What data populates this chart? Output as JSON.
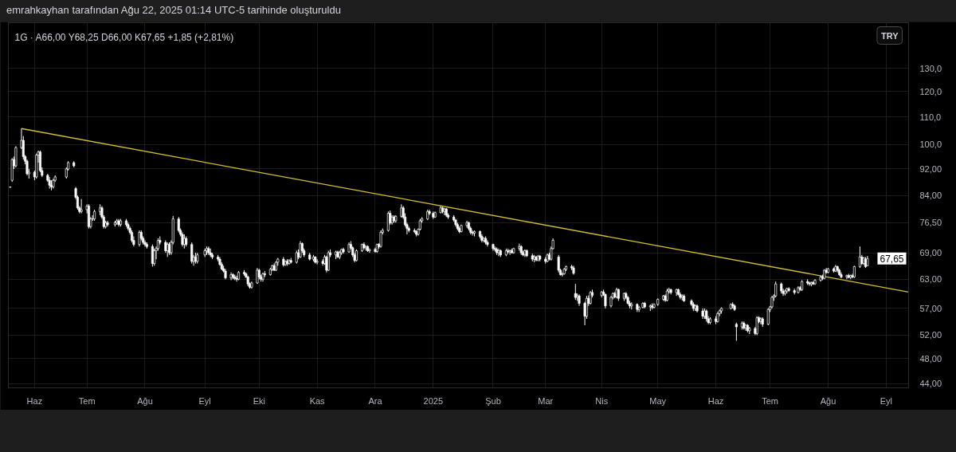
{
  "chart_data": {
    "type": "candlestick",
    "title": "emrahkayhan tarafından Ağu 22, 2025 01:14 UTC-5 tarihinde oluşturuldu",
    "subtitle": "1G · A66,00 Y68,25 D66,00 K67,65 +1,85 (+2,81%)",
    "color": "#ffffff",
    "x": [
      "2024-05-21",
      "2024-05-22",
      "2024-05-23",
      "2024-05-24",
      "2024-05-27",
      "2024-05-28",
      "2024-05-29",
      "2024-05-30",
      "2024-05-31",
      "2024-06-03",
      "2024-06-04",
      "2024-06-05",
      "2024-06-06",
      "2024-06-07",
      "2024-06-10",
      "2024-06-11",
      "2024-06-12",
      "2024-06-13",
      "2024-06-14",
      "2024-06-20",
      "2024-06-21",
      "2024-06-24",
      "2024-06-25",
      "2024-06-26",
      "2024-06-27",
      "2024-06-28",
      "2024-07-01",
      "2024-07-02",
      "2024-07-03",
      "2024-07-04",
      "2024-07-05",
      "2024-07-08",
      "2024-07-09",
      "2024-07-10",
      "2024-07-11",
      "2024-07-12",
      "2024-07-16",
      "2024-07-17",
      "2024-07-18",
      "2024-07-19",
      "2024-07-22",
      "2024-07-23",
      "2024-07-24",
      "2024-07-25",
      "2024-07-26",
      "2024-07-29",
      "2024-07-30",
      "2024-07-31",
      "2024-08-01",
      "2024-08-02",
      "2024-08-05",
      "2024-08-06",
      "2024-08-07",
      "2024-08-08",
      "2024-08-09",
      "2024-08-12",
      "2024-08-13",
      "2024-08-14",
      "2024-08-15",
      "2024-08-16",
      "2024-08-19",
      "2024-08-20",
      "2024-08-21",
      "2024-08-22",
      "2024-08-23",
      "2024-08-26",
      "2024-08-27",
      "2024-08-28",
      "2024-08-29",
      "2024-09-02",
      "2024-09-03",
      "2024-09-04",
      "2024-09-05",
      "2024-09-06",
      "2024-09-09",
      "2024-09-10",
      "2024-09-11",
      "2024-09-12",
      "2024-09-13",
      "2024-09-16",
      "2024-09-17",
      "2024-09-18",
      "2024-09-19",
      "2024-09-20",
      "2024-09-23",
      "2024-09-24",
      "2024-09-25",
      "2024-09-26",
      "2024-09-27",
      "2024-09-30",
      "2024-10-01",
      "2024-10-02",
      "2024-10-03",
      "2024-10-04",
      "2024-10-07",
      "2024-10-08",
      "2024-10-09",
      "2024-10-10",
      "2024-10-11",
      "2024-10-14",
      "2024-10-15",
      "2024-10-16",
      "2024-10-17",
      "2024-10-18",
      "2024-10-21",
      "2024-10-22",
      "2024-10-23",
      "2024-10-24",
      "2024-10-25",
      "2024-10-28",
      "2024-10-30",
      "2024-10-31",
      "2024-11-01",
      "2024-11-04",
      "2024-11-05",
      "2024-11-06",
      "2024-11-07",
      "2024-11-08",
      "2024-11-11",
      "2024-11-12",
      "2024-11-13",
      "2024-11-14",
      "2024-11-15",
      "2024-11-18",
      "2024-11-19",
      "2024-11-20",
      "2024-11-21",
      "2024-11-22",
      "2024-11-25",
      "2024-11-26",
      "2024-11-27",
      "2024-11-28",
      "2024-11-29",
      "2024-12-02",
      "2024-12-03",
      "2024-12-04",
      "2024-12-05",
      "2024-12-06",
      "2024-12-09",
      "2024-12-10",
      "2024-12-11",
      "2024-12-12",
      "2024-12-13",
      "2024-12-16",
      "2024-12-17",
      "2024-12-18",
      "2024-12-19",
      "2024-12-20",
      "2024-12-23",
      "2024-12-24",
      "2024-12-25",
      "2024-12-26",
      "2024-12-27",
      "2024-12-30",
      "2024-12-31",
      "2025-01-02",
      "2025-01-03",
      "2025-01-06",
      "2025-01-07",
      "2025-01-08",
      "2025-01-09",
      "2025-01-10",
      "2025-01-13",
      "2025-01-14",
      "2025-01-15",
      "2025-01-16",
      "2025-01-17",
      "2025-01-20",
      "2025-01-21",
      "2025-01-22",
      "2025-01-23",
      "2025-01-24",
      "2025-01-27",
      "2025-01-28",
      "2025-01-29",
      "2025-01-30",
      "2025-01-31",
      "2025-02-03",
      "2025-02-04",
      "2025-02-05",
      "2025-02-06",
      "2025-02-07",
      "2025-02-10",
      "2025-02-11",
      "2025-02-12",
      "2025-02-13",
      "2025-02-14",
      "2025-02-17",
      "2025-02-18",
      "2025-02-19",
      "2025-02-20",
      "2025-02-21",
      "2025-02-24",
      "2025-02-25",
      "2025-02-26",
      "2025-02-27",
      "2025-02-28",
      "2025-03-03",
      "2025-03-04",
      "2025-03-05",
      "2025-03-06",
      "2025-03-07",
      "2025-03-10",
      "2025-03-11",
      "2025-03-12",
      "2025-03-13",
      "2025-03-14",
      "2025-03-17",
      "2025-03-18",
      "2025-03-19",
      "2025-03-20",
      "2025-03-21",
      "2025-03-24",
      "2025-03-25",
      "2025-03-26",
      "2025-03-27",
      "2025-03-28",
      "2025-04-02",
      "2025-04-03",
      "2025-04-04",
      "2025-04-07",
      "2025-04-08",
      "2025-04-09",
      "2025-04-10",
      "2025-04-11",
      "2025-04-14",
      "2025-04-15",
      "2025-04-16",
      "2025-04-17",
      "2025-04-18",
      "2025-04-21",
      "2025-04-22",
      "2025-04-24",
      "2025-04-25",
      "2025-04-28",
      "2025-04-29",
      "2025-04-30",
      "2025-05-02",
      "2025-05-05",
      "2025-05-06",
      "2025-05-07",
      "2025-05-08",
      "2025-05-09",
      "2025-05-12",
      "2025-05-13",
      "2025-05-14",
      "2025-05-15",
      "2025-05-16",
      "2025-05-20",
      "2025-05-21",
      "2025-05-22",
      "2025-05-23",
      "2025-05-26",
      "2025-05-27",
      "2025-05-28",
      "2025-05-29",
      "2025-05-30",
      "2025-06-02",
      "2025-06-03",
      "2025-06-04",
      "2025-06-05",
      "2025-06-10",
      "2025-06-11",
      "2025-06-12",
      "2025-06-13",
      "2025-06-16",
      "2025-06-17",
      "2025-06-18",
      "2025-06-19",
      "2025-06-20",
      "2025-06-23",
      "2025-06-24",
      "2025-06-25",
      "2025-06-26",
      "2025-06-27",
      "2025-06-30",
      "2025-07-01",
      "2025-07-02",
      "2025-07-03",
      "2025-07-04",
      "2025-07-07",
      "2025-07-08",
      "2025-07-09",
      "2025-07-10",
      "2025-07-11",
      "2025-07-14",
      "2025-07-16",
      "2025-07-17",
      "2025-07-18",
      "2025-07-21",
      "2025-07-22",
      "2025-07-23",
      "2025-07-24",
      "2025-07-25",
      "2025-07-28",
      "2025-07-29",
      "2025-07-30",
      "2025-07-31",
      "2025-08-01",
      "2025-08-04",
      "2025-08-05",
      "2025-08-06",
      "2025-08-07",
      "2025-08-08",
      "2025-08-11",
      "2025-08-12",
      "2025-08-13",
      "2025-08-14",
      "2025-08-15",
      "2025-08-18",
      "2025-08-19",
      "2025-08-20",
      "2025-08-21",
      "2025-08-22"
    ],
    "ohlc": [
      [
        86.4,
        86.6,
        86.3,
        86.5
      ],
      [
        88.5,
        95.5,
        88,
        95
      ],
      [
        95,
        96,
        92,
        93
      ],
      [
        93,
        99.5,
        92.5,
        99
      ],
      [
        99,
        105.7,
        98.5,
        101.5
      ],
      [
        101.5,
        103,
        95,
        96
      ],
      [
        96,
        96.5,
        93.5,
        94.5
      ],
      [
        94.5,
        95,
        90,
        90.5
      ],
      [
        90.5,
        92,
        89,
        91
      ],
      [
        91,
        91.5,
        88.5,
        89.5
      ],
      [
        89.5,
        97,
        89,
        96.5
      ],
      [
        96.5,
        98,
        94,
        97.5
      ],
      [
        97.5,
        98,
        91,
        91.5
      ],
      [
        91.5,
        92.5,
        89.5,
        90
      ],
      [
        90,
        90.5,
        88,
        88.5
      ],
      [
        88.5,
        89.5,
        86,
        87
      ],
      [
        87,
        88.5,
        85.5,
        86.5
      ],
      [
        86.5,
        89,
        86,
        88.5
      ],
      [
        88.5,
        90,
        88,
        89.5
      ],
      [
        89.5,
        92.5,
        89,
        92
      ],
      [
        92,
        94.5,
        91.5,
        94
      ],
      [
        94,
        94.5,
        92.5,
        93
      ],
      [
        86,
        86.5,
        83,
        83.5
      ],
      [
        83.5,
        84,
        80,
        80.5
      ],
      [
        80.5,
        81,
        79,
        79.5
      ],
      [
        79.5,
        83,
        79,
        80
      ],
      [
        80,
        81.5,
        79,
        81
      ],
      [
        81,
        81.5,
        75,
        75.5
      ],
      [
        75.5,
        78,
        75,
        77.5
      ],
      [
        77.5,
        78.5,
        77,
        77.5
      ],
      [
        77.5,
        80,
        77,
        79.5
      ],
      [
        79.5,
        81.5,
        78.5,
        80.5
      ],
      [
        80.5,
        81,
        77.5,
        78
      ],
      [
        78,
        78.5,
        75,
        75.5
      ],
      [
        75.5,
        77,
        75,
        76.5
      ],
      [
        76.5,
        77,
        75.5,
        76
      ],
      [
        76,
        77,
        75.5,
        76.5
      ],
      [
        76.5,
        77.5,
        76,
        77
      ],
      [
        77,
        77.5,
        75.5,
        76
      ],
      [
        76,
        77.5,
        75.5,
        77
      ],
      [
        77,
        77.5,
        75.5,
        76
      ],
      [
        76,
        76.5,
        74.5,
        75
      ],
      [
        75,
        75.5,
        73.5,
        74
      ],
      [
        74,
        74.5,
        71.5,
        72
      ],
      [
        72,
        73,
        70.5,
        71
      ],
      [
        71,
        74.5,
        70.5,
        74
      ],
      [
        74,
        74.5,
        72,
        72.5
      ],
      [
        72.5,
        73,
        71,
        71.5
      ],
      [
        71.5,
        72,
        70.5,
        71
      ],
      [
        71,
        71.5,
        70,
        70.5
      ],
      [
        70.5,
        71,
        65.8,
        66.5
      ],
      [
        66.5,
        70,
        66,
        69.5
      ],
      [
        69.5,
        70.5,
        67.5,
        70
      ],
      [
        70,
        72.5,
        69.5,
        72
      ],
      [
        72,
        73,
        71,
        71.5
      ],
      [
        71.5,
        72,
        69,
        69.5
      ],
      [
        69.5,
        71.5,
        68,
        71
      ],
      [
        71,
        71.5,
        68.5,
        69
      ],
      [
        69,
        72,
        68.5,
        71.5
      ],
      [
        71.5,
        78.3,
        71,
        77.5
      ],
      [
        77.5,
        78,
        74,
        74.5
      ],
      [
        74.5,
        75,
        73,
        73.5
      ],
      [
        73.5,
        74,
        70.5,
        71
      ],
      [
        71,
        73.5,
        70,
        72.5
      ],
      [
        72.5,
        73,
        70.5,
        71
      ],
      [
        71,
        71.5,
        66.5,
        67
      ],
      [
        67,
        68.5,
        66,
        68
      ],
      [
        68,
        69,
        66.5,
        67
      ],
      [
        67,
        69,
        66.5,
        68.5
      ],
      [
        68.5,
        70,
        68,
        69.5
      ],
      [
        69.5,
        70.5,
        68.5,
        70
      ],
      [
        70,
        70.5,
        68.5,
        69
      ],
      [
        69,
        70,
        68,
        68.5
      ],
      [
        68.5,
        69,
        67.5,
        68
      ],
      [
        68,
        68.5,
        67,
        67.5
      ],
      [
        67.5,
        68,
        66,
        66.3
      ],
      [
        66.3,
        66.8,
        65,
        65.3
      ],
      [
        65.3,
        66,
        64.5,
        64.8
      ],
      [
        64.8,
        65.3,
        63,
        63.3
      ],
      [
        63.3,
        64.5,
        62.8,
        64
      ],
      [
        64,
        64.3,
        63,
        63.5
      ],
      [
        63.5,
        64,
        62.8,
        63.2
      ],
      [
        63.2,
        63.8,
        62.5,
        63
      ],
      [
        63,
        64.8,
        62.8,
        64.5
      ],
      [
        64.5,
        65,
        63.8,
        64.2
      ],
      [
        64.2,
        64.5,
        63.3,
        63.5
      ],
      [
        63.5,
        63.8,
        61.5,
        62
      ],
      [
        62,
        62.3,
        61,
        61.3
      ],
      [
        61.3,
        62.5,
        61,
        62.2
      ],
      [
        62.2,
        65.5,
        62,
        65
      ],
      [
        65,
        65.3,
        63,
        63.5
      ],
      [
        63.5,
        64,
        62.5,
        63
      ],
      [
        63,
        64.5,
        62.5,
        64.2
      ],
      [
        64.2,
        64.8,
        63.5,
        64
      ],
      [
        64,
        65.5,
        63.8,
        65.2
      ],
      [
        65.2,
        66.2,
        64.8,
        66
      ],
      [
        66,
        66.5,
        64.8,
        65
      ],
      [
        65,
        67,
        64.8,
        66.8
      ],
      [
        66.8,
        67.8,
        66,
        67.5
      ],
      [
        67.5,
        68,
        65.8,
        66.2
      ],
      [
        66.2,
        67.2,
        66,
        67
      ],
      [
        67,
        67.5,
        66,
        66.5
      ],
      [
        66.5,
        67.5,
        66.2,
        67.2
      ],
      [
        67.2,
        67.8,
        66.5,
        66.8
      ],
      [
        66.8,
        69.5,
        66.5,
        69
      ],
      [
        69,
        69.8,
        67.5,
        68
      ],
      [
        68,
        71.8,
        67.8,
        71.2
      ],
      [
        71.2,
        71.5,
        69,
        69.5
      ],
      [
        69.5,
        70,
        68,
        68.5
      ],
      [
        68.5,
        69,
        67.2,
        67.5
      ],
      [
        67.5,
        68.5,
        67,
        68
      ],
      [
        68,
        68.2,
        66.5,
        66.8
      ],
      [
        66.8,
        67.5,
        66.3,
        67
      ],
      [
        67,
        67.5,
        66,
        66.5
      ],
      [
        66.5,
        68.5,
        66.2,
        68
      ],
      [
        68,
        68.3,
        64.5,
        65
      ],
      [
        65,
        69.5,
        64.8,
        69
      ],
      [
        69,
        69.8,
        68,
        68.5
      ],
      [
        68.5,
        69.5,
        67.5,
        69.2
      ],
      [
        69.2,
        69.5,
        67.8,
        68
      ],
      [
        68,
        69.5,
        67.5,
        69
      ],
      [
        69,
        70,
        68.5,
        69.8
      ],
      [
        69.8,
        70.2,
        68.8,
        69.2
      ],
      [
        69.2,
        71.5,
        69,
        71
      ],
      [
        71,
        71.8,
        69.8,
        70.2
      ],
      [
        70.2,
        70.5,
        68,
        68.5
      ],
      [
        68.5,
        69,
        66.8,
        67.2
      ],
      [
        67.2,
        69.8,
        67,
        69.5
      ],
      [
        69.5,
        71.2,
        69.2,
        71
      ],
      [
        71,
        71.5,
        69.8,
        70.2
      ],
      [
        70.2,
        70.8,
        69.5,
        70.5
      ],
      [
        70.5,
        70.8,
        69.2,
        69.5
      ],
      [
        69.5,
        70,
        69,
        69.8
      ],
      [
        69.8,
        70.2,
        69,
        69.3
      ],
      [
        69.3,
        71.2,
        69,
        71
      ],
      [
        71,
        71.3,
        70,
        70.5
      ],
      [
        70.5,
        74.5,
        70.2,
        74
      ],
      [
        74,
        75,
        73.5,
        74.5
      ],
      [
        74.5,
        79.5,
        74.2,
        79
      ],
      [
        79,
        79.8,
        76,
        76.5
      ],
      [
        76.5,
        78.5,
        76,
        78
      ],
      [
        78,
        78.5,
        76.5,
        77
      ],
      [
        77,
        78.5,
        76.5,
        78.2
      ],
      [
        78.2,
        81.5,
        77.8,
        80.5
      ],
      [
        80.5,
        81,
        77.5,
        78
      ],
      [
        78,
        79,
        75.5,
        76
      ],
      [
        76,
        76.5,
        73.5,
        75
      ],
      [
        75,
        75.5,
        74,
        74.5
      ],
      [
        74.5,
        75,
        73.8,
        74.2
      ],
      [
        74.2,
        74.5,
        73,
        73.5
      ],
      [
        73.5,
        75,
        73.2,
        74.8
      ],
      [
        74.8,
        77.5,
        74.5,
        77
      ],
      [
        77,
        78,
        76.5,
        77.5
      ],
      [
        77.5,
        80,
        77.2,
        79.5
      ],
      [
        79.5,
        80,
        78.5,
        79
      ],
      [
        79,
        79.5,
        77.5,
        78
      ],
      [
        78,
        79.5,
        77.8,
        79.2
      ],
      [
        79.2,
        81,
        79,
        80.5
      ],
      [
        80.5,
        80.8,
        79,
        79.5
      ],
      [
        79.5,
        80.5,
        78.5,
        80.2
      ],
      [
        80.2,
        80.5,
        78,
        78.5
      ],
      [
        78.5,
        79,
        77.5,
        78
      ],
      [
        78,
        78.5,
        76.8,
        77.2
      ],
      [
        77.2,
        77.5,
        75.5,
        76
      ],
      [
        76,
        76.5,
        74.5,
        75
      ],
      [
        75,
        75.5,
        73.8,
        74.2
      ],
      [
        74.2,
        76,
        74,
        75.8
      ],
      [
        75.8,
        77,
        75.2,
        76.5
      ],
      [
        76.5,
        76.8,
        74.5,
        75
      ],
      [
        75,
        75.5,
        73.5,
        74
      ],
      [
        74,
        74.5,
        73.2,
        73.8
      ],
      [
        73.8,
        74.5,
        73,
        74.2
      ],
      [
        74.2,
        74.5,
        72.5,
        73
      ],
      [
        73,
        73.5,
        71.5,
        72
      ],
      [
        72,
        72.8,
        71.5,
        72.5
      ],
      [
        72.5,
        73,
        71,
        71.5
      ],
      [
        71.5,
        72,
        70.5,
        71
      ],
      [
        71,
        71.2,
        69.5,
        70
      ],
      [
        70,
        70.5,
        69.3,
        69.8
      ],
      [
        69.8,
        70.3,
        68.5,
        69
      ],
      [
        69,
        70,
        68.2,
        69.5
      ],
      [
        69.5,
        69.8,
        68,
        68.5
      ],
      [
        68.5,
        70,
        68.2,
        69.5
      ],
      [
        69.5,
        70,
        68.8,
        69.2
      ],
      [
        69.2,
        69.8,
        68.5,
        69.5
      ],
      [
        69.5,
        70,
        68.8,
        69
      ],
      [
        69,
        70.2,
        68.8,
        70
      ],
      [
        70,
        71.2,
        69.5,
        70.5
      ],
      [
        70.5,
        70.8,
        68.5,
        69
      ],
      [
        69,
        69.5,
        68.2,
        68.5
      ],
      [
        68.5,
        69.8,
        68,
        69.5
      ],
      [
        69.5,
        69.8,
        68,
        68.3
      ],
      [
        68.3,
        68.8,
        67,
        67.5
      ],
      [
        67.5,
        68.5,
        66.8,
        68
      ],
      [
        68,
        68.3,
        67,
        67.3
      ],
      [
        67.3,
        68.5,
        67,
        68.2
      ],
      [
        68.2,
        68.5,
        67,
        67.5
      ],
      [
        67.5,
        68,
        66.5,
        67
      ],
      [
        67,
        68.8,
        66.8,
        68.5
      ],
      [
        68.5,
        69,
        67.2,
        67.5
      ],
      [
        67.5,
        70.5,
        67.2,
        70
      ],
      [
        70,
        72.5,
        69.8,
        72
      ],
      [
        68,
        68.5,
        64.5,
        65
      ],
      [
        65,
        65.3,
        63.8,
        64
      ],
      [
        64,
        64.5,
        63.6,
        64.2
      ],
      [
        64.2,
        65.5,
        64,
        65.2
      ],
      [
        65.2,
        66,
        64.8,
        65.8
      ],
      [
        65.8,
        66.2,
        65,
        65.5
      ],
      [
        65.5,
        66,
        64,
        64.3
      ],
      [
        60,
        62,
        58.7,
        59.2
      ],
      [
        59.2,
        60,
        58.5,
        59.5
      ],
      [
        59.5,
        59.8,
        57.5,
        58
      ],
      [
        58,
        58.3,
        53.8,
        55.5
      ],
      [
        55.5,
        59.5,
        55,
        59
      ],
      [
        59,
        59.6,
        57.5,
        58
      ],
      [
        58,
        60.5,
        57.8,
        60.2
      ],
      [
        60.2,
        60.8,
        59.2,
        59.6
      ],
      [
        59.6,
        60.5,
        59.2,
        60.3
      ],
      [
        60.3,
        60.8,
        59.5,
        59.8
      ],
      [
        59.8,
        60,
        57,
        57.5
      ],
      [
        57.5,
        59.5,
        57.2,
        59.2
      ],
      [
        59.2,
        60.2,
        58.8,
        60
      ],
      [
        60,
        60.3,
        59,
        59.3
      ],
      [
        59.3,
        61.2,
        59,
        60.8
      ],
      [
        60.8,
        61,
        58.5,
        59
      ],
      [
        59,
        60.2,
        58.5,
        60
      ],
      [
        60,
        60.3,
        58.8,
        59.2
      ],
      [
        59.2,
        59.5,
        57.8,
        58
      ],
      [
        58,
        58.5,
        57,
        57.5
      ],
      [
        57.5,
        58.2,
        56.8,
        57.8
      ],
      [
        57.8,
        58,
        56.3,
        56.8
      ],
      [
        56.8,
        57.5,
        56.3,
        57.2
      ],
      [
        57.2,
        58.2,
        57,
        58
      ],
      [
        58,
        58.3,
        57,
        57.3
      ],
      [
        57.3,
        57.8,
        56.5,
        57.5
      ],
      [
        57.5,
        58,
        56.8,
        57.2
      ],
      [
        57.2,
        58,
        57,
        57.8
      ],
      [
        57.8,
        59,
        57.5,
        58.8
      ],
      [
        58.8,
        59.7,
        58.5,
        59.5
      ],
      [
        59.5,
        59.8,
        58.3,
        58.6
      ],
      [
        58.6,
        61,
        58.4,
        60.5
      ],
      [
        60.5,
        61.2,
        60,
        60.8
      ],
      [
        60.8,
        61,
        59.8,
        60.2
      ],
      [
        60.2,
        61,
        59.5,
        60.8
      ],
      [
        60.8,
        61,
        59.6,
        59.8
      ],
      [
        59.8,
        60.2,
        58.8,
        59.2
      ],
      [
        59.2,
        59.8,
        58.6,
        59.5
      ],
      [
        59.5,
        59.8,
        58.3,
        58.5
      ],
      [
        58.5,
        58.8,
        57.5,
        57.8
      ],
      [
        57.8,
        58.2,
        56.5,
        57
      ],
      [
        57,
        57.8,
        56.5,
        57.5
      ],
      [
        57.5,
        57.8,
        56.2,
        56.5
      ],
      [
        56.5,
        57,
        55,
        55.5
      ],
      [
        55.5,
        57,
        55,
        56.5
      ],
      [
        56.5,
        56.8,
        54.5,
        55
      ],
      [
        55,
        55.5,
        54,
        54.3
      ],
      [
        54.3,
        55.3,
        54,
        55
      ],
      [
        55,
        55.5,
        54,
        54.5
      ],
      [
        54.5,
        56.3,
        54.3,
        56
      ],
      [
        56,
        56.8,
        55.5,
        56.5
      ],
      [
        56.5,
        57.2,
        56,
        57
      ],
      [
        57,
        58,
        56.8,
        57.8
      ],
      [
        57.8,
        58.2,
        57,
        57.5
      ],
      [
        57.5,
        57.8,
        56.5,
        56.8
      ],
      [
        54,
        54.3,
        51,
        53.5
      ],
      [
        53.5,
        54.5,
        53,
        54.2
      ],
      [
        54.2,
        54.5,
        53,
        53.3
      ],
      [
        53.3,
        54,
        52.8,
        53.8
      ],
      [
        53.8,
        54,
        52.5,
        52.8
      ],
      [
        52.8,
        53.5,
        52.2,
        53.2
      ],
      [
        53.2,
        53.5,
        52,
        52.3
      ],
      [
        52.3,
        55.5,
        52,
        55.2
      ],
      [
        55.2,
        55.5,
        54.2,
        54.5
      ],
      [
        54.5,
        55.3,
        54,
        55
      ],
      [
        55,
        55.3,
        53.5,
        54
      ],
      [
        54,
        57,
        53.8,
        56.8
      ],
      [
        56.8,
        57.5,
        56.3,
        57.3
      ],
      [
        57.3,
        59.5,
        57,
        59.2
      ],
      [
        59.2,
        59.8,
        58.5,
        59.5
      ],
      [
        59.5,
        62.5,
        59.2,
        62
      ],
      [
        62,
        62.3,
        60,
        60.5
      ],
      [
        60.5,
        61,
        59.5,
        60
      ],
      [
        60,
        60.8,
        59.6,
        60.5
      ],
      [
        60.5,
        61.2,
        60,
        61
      ],
      [
        61,
        61.3,
        60.3,
        60.6
      ],
      [
        60.6,
        61,
        59.8,
        60.2
      ],
      [
        60.2,
        61.5,
        60,
        61.2
      ],
      [
        61.2,
        61.5,
        60.5,
        60.8
      ],
      [
        60.8,
        62.8,
        60.5,
        62.5
      ],
      [
        62.5,
        63,
        61.8,
        62.2
      ],
      [
        62.2,
        62.5,
        61.6,
        62
      ],
      [
        62,
        62.5,
        61.5,
        62.3
      ],
      [
        62.3,
        62.6,
        61.8,
        62
      ],
      [
        62,
        63,
        61.8,
        62.8
      ],
      [
        62.8,
        63.8,
        62.5,
        63.5
      ],
      [
        63.5,
        64,
        62.8,
        63.2
      ],
      [
        63.2,
        65.2,
        63,
        65
      ],
      [
        65,
        65.5,
        64.2,
        64.5
      ],
      [
        64.5,
        65.5,
        64.3,
        65.3
      ],
      [
        65.3,
        65.6,
        64.5,
        64.8
      ],
      [
        64.8,
        66.2,
        64.6,
        65.8
      ],
      [
        65.8,
        66,
        64.5,
        65
      ],
      [
        65,
        65.3,
        63.8,
        64
      ],
      [
        64,
        64.5,
        63.2,
        63.5
      ],
      [
        63.5,
        64,
        63,
        63.8
      ],
      [
        63.8,
        64.2,
        63.2,
        63.4
      ],
      [
        63.4,
        64,
        63,
        63.8
      ],
      [
        63.8,
        64.2,
        63.2,
        63.5
      ],
      [
        63.5,
        66,
        63.3,
        65.8
      ],
      [
        65.8,
        70.5,
        65.5,
        68
      ],
      [
        68,
        68.5,
        66.2,
        66.5
      ],
      [
        66.5,
        68,
        66.2,
        67.8
      ],
      [
        67.5,
        68,
        65.5,
        65.8
      ],
      [
        66,
        68.25,
        66,
        67.65
      ]
    ],
    "series": [
      {
        "type": "line",
        "color": "#d6c21f",
        "x": [
          "2024-05-27",
          "2025-09-13"
        ],
        "values": [
          105.7,
          60.3
        ]
      }
    ],
    "xlim": [
      "2024-05-20",
      "2025-09-13"
    ],
    "xticks": [
      {
        "value": "2024-06-03",
        "label": "Haz"
      },
      {
        "value": "2024-07-01",
        "label": "Tem"
      },
      {
        "value": "2024-08-01",
        "label": "Ağu"
      },
      {
        "value": "2024-09-02",
        "label": "Eyl"
      },
      {
        "value": "2024-10-01",
        "label": "Eki"
      },
      {
        "value": "2024-11-01",
        "label": "Kas"
      },
      {
        "value": "2024-12-02",
        "label": "Ara"
      },
      {
        "value": "2025-01-02",
        "label": "2025"
      },
      {
        "value": "2025-02-03",
        "label": "Şub"
      },
      {
        "value": "2025-03-03",
        "label": "Mar"
      },
      {
        "value": "2025-04-02",
        "label": "Nis"
      },
      {
        "value": "2025-05-02",
        "label": "May"
      },
      {
        "value": "2025-06-02",
        "label": "Haz"
      },
      {
        "value": "2025-07-01",
        "label": "Tem"
      },
      {
        "value": "2025-08-01",
        "label": "Ağu"
      },
      {
        "value": "2025-09-01",
        "label": "Eyl"
      }
    ],
    "ylim": [
      43.4,
      152
    ],
    "yticks": [
      {
        "value": 44,
        "label": "44,00"
      },
      {
        "value": 48,
        "label": "48,00"
      },
      {
        "value": 52,
        "label": "52,00"
      },
      {
        "value": 57,
        "label": "57,00"
      },
      {
        "value": 63,
        "label": "63,00"
      },
      {
        "value": 69,
        "label": "69,00"
      },
      {
        "value": 76.5,
        "label": "76,50"
      },
      {
        "value": 84,
        "label": "84,00"
      },
      {
        "value": 92,
        "label": "92,00"
      },
      {
        "value": 100,
        "label": "100,0"
      },
      {
        "value": 110,
        "label": "110,0"
      },
      {
        "value": 120,
        "label": "120,0"
      },
      {
        "value": 130,
        "label": "130,0"
      }
    ],
    "log": true,
    "grid": true,
    "annotations": [
      "TRY",
      {
        "text": "67,65",
        "y": 67.65
      }
    ]
  }
}
